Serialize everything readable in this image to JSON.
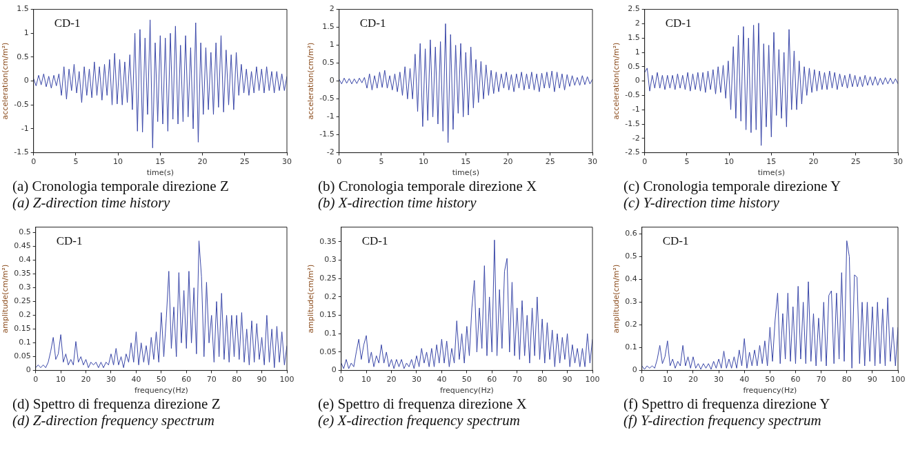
{
  "chart_data": [
    {
      "type": "line",
      "title": "(a) Cronologia temporale direzione Z",
      "subtitle": "(a) Z-direction time history",
      "xlabel": "time(s)",
      "ylabel": "acceleration(cm/m²)",
      "annotations": [
        "CD-1"
      ],
      "color": "#3a47a8",
      "x": [
        0,
        0.3,
        0.6,
        0.9,
        1.2,
        1.5,
        1.8,
        2.1,
        2.4,
        2.7,
        3,
        3.3,
        3.6,
        3.9,
        4.2,
        4.5,
        4.8,
        5.1,
        5.4,
        5.7,
        6,
        6.3,
        6.6,
        6.9,
        7.2,
        7.5,
        7.8,
        8.1,
        8.4,
        8.7,
        9,
        9.3,
        9.6,
        9.9,
        10.2,
        10.5,
        10.8,
        11.1,
        11.4,
        11.7,
        12,
        12.3,
        12.6,
        12.9,
        13.2,
        13.5,
        13.8,
        14.1,
        14.4,
        14.7,
        15,
        15.3,
        15.6,
        15.9,
        16.2,
        16.5,
        16.8,
        17.1,
        17.4,
        17.7,
        18,
        18.3,
        18.6,
        18.9,
        19.2,
        19.5,
        19.8,
        20.1,
        20.4,
        20.7,
        21,
        21.3,
        21.6,
        21.9,
        22.2,
        22.5,
        22.8,
        23.1,
        23.4,
        23.7,
        24,
        24.3,
        24.6,
        24.9,
        25.2,
        25.5,
        25.8,
        26.1,
        26.4,
        26.7,
        27,
        27.3,
        27.6,
        27.9,
        28.2,
        28.5,
        28.8,
        29.1,
        29.4,
        29.7,
        30
      ],
      "values": [
        0.05,
        -0.1,
        0.12,
        -0.08,
        0.15,
        -0.12,
        0.1,
        -0.15,
        0.12,
        -0.1,
        0.15,
        -0.3,
        0.3,
        -0.38,
        0.25,
        -0.2,
        0.35,
        -0.25,
        0.2,
        -0.45,
        0.3,
        -0.3,
        0.25,
        -0.35,
        0.4,
        -0.3,
        0.3,
        -0.4,
        0.35,
        -0.3,
        0.45,
        -0.5,
        0.58,
        -0.48,
        0.45,
        -0.5,
        0.4,
        -0.45,
        0.55,
        -0.6,
        1.0,
        -1.05,
        1.08,
        -1.07,
        0.9,
        -0.7,
        1.28,
        -1.4,
        0.8,
        -0.85,
        0.95,
        -0.9,
        0.9,
        -1.05,
        1.0,
        -0.8,
        1.15,
        -0.9,
        0.75,
        -0.85,
        0.95,
        -0.75,
        0.7,
        -1.0,
        1.22,
        -1.28,
        0.8,
        -0.7,
        0.7,
        -0.6,
        0.6,
        -0.7,
        0.8,
        -0.55,
        0.95,
        -0.65,
        0.65,
        -0.5,
        0.55,
        -0.6,
        0.6,
        -0.3,
        0.35,
        -0.25,
        0.25,
        -0.3,
        0.2,
        -0.25,
        0.3,
        -0.2,
        0.25,
        -0.25,
        0.3,
        -0.2,
        0.2,
        -0.25,
        0.2,
        -0.2,
        0.15,
        -0.2,
        0.1
      ],
      "xlim": [
        0,
        30
      ],
      "xticks": [
        0,
        5,
        10,
        15,
        20,
        25,
        30
      ],
      "ylim": [
        -1.5,
        1.5
      ],
      "yticks": [
        -1.5,
        -1,
        -0.5,
        0,
        0.5,
        1,
        1.5
      ]
    },
    {
      "type": "line",
      "title": "(b) Cronologia temporale direzione X",
      "subtitle": "(b) X-direction time history",
      "xlabel": "time(s)",
      "ylabel": "acceleration(cm/m²)",
      "annotations": [
        "CD-1"
      ],
      "color": "#3a47a8",
      "x": [
        0,
        0.3,
        0.6,
        0.9,
        1.2,
        1.5,
        1.8,
        2.1,
        2.4,
        2.7,
        3,
        3.3,
        3.6,
        3.9,
        4.2,
        4.5,
        4.8,
        5.1,
        5.4,
        5.7,
        6,
        6.3,
        6.6,
        6.9,
        7.2,
        7.5,
        7.8,
        8.1,
        8.4,
        8.7,
        9,
        9.3,
        9.6,
        9.9,
        10.2,
        10.5,
        10.8,
        11.1,
        11.4,
        11.7,
        12,
        12.3,
        12.6,
        12.9,
        13.2,
        13.5,
        13.8,
        14.1,
        14.4,
        14.7,
        15,
        15.3,
        15.6,
        15.9,
        16.2,
        16.5,
        16.8,
        17.1,
        17.4,
        17.7,
        18,
        18.3,
        18.6,
        18.9,
        19.2,
        19.5,
        19.8,
        20.1,
        20.4,
        20.7,
        21,
        21.3,
        21.6,
        21.9,
        22.2,
        22.5,
        22.8,
        23.1,
        23.4,
        23.7,
        24,
        24.3,
        24.6,
        24.9,
        25.2,
        25.5,
        25.8,
        26.1,
        26.4,
        26.7,
        27,
        27.3,
        27.6,
        27.9,
        28.2,
        28.5,
        28.8,
        29.1,
        29.4,
        29.7,
        30
      ],
      "values": [
        0.05,
        -0.08,
        0.08,
        -0.06,
        0.07,
        -0.08,
        0.06,
        -0.07,
        0.08,
        -0.05,
        0.1,
        -0.2,
        0.2,
        -0.25,
        0.15,
        -0.2,
        0.25,
        -0.18,
        0.3,
        -0.2,
        0.15,
        -0.25,
        0.2,
        -0.3,
        0.25,
        -0.4,
        0.4,
        -0.5,
        0.35,
        -0.5,
        0.75,
        -0.85,
        1.05,
        -1.27,
        0.9,
        -1.1,
        1.15,
        -1.0,
        0.95,
        -1.2,
        1.1,
        -1.4,
        1.6,
        -1.72,
        1.3,
        -1.35,
        1.0,
        -0.9,
        1.05,
        -1.0,
        0.8,
        -0.95,
        0.95,
        -0.75,
        0.6,
        -0.6,
        0.55,
        -0.5,
        0.45,
        -0.4,
        0.3,
        -0.35,
        0.25,
        -0.3,
        0.2,
        -0.2,
        0.25,
        -0.25,
        0.18,
        -0.3,
        0.2,
        -0.2,
        0.25,
        -0.25,
        0.2,
        -0.22,
        0.25,
        -0.25,
        0.2,
        -0.3,
        0.22,
        -0.2,
        0.25,
        -0.2,
        0.28,
        -0.3,
        0.25,
        -0.2,
        0.2,
        -0.25,
        0.18,
        -0.15,
        0.15,
        -0.12,
        0.1,
        -0.12,
        0.15,
        -0.1,
        0.12,
        -0.08,
        0.05
      ],
      "xlim": [
        0,
        30
      ],
      "xticks": [
        0,
        5,
        10,
        15,
        20,
        25,
        30
      ],
      "ylim": [
        -2,
        2
      ],
      "yticks": [
        -2,
        -1.5,
        -1,
        -0.5,
        0,
        0.5,
        1,
        1.5,
        2
      ]
    },
    {
      "type": "line",
      "title": "(c) Cronologia temporale direzione Y",
      "subtitle": "(c) Y-direction time history",
      "xlabel": "time(s)",
      "ylabel": "acceleration(cm/m²)",
      "annotations": [
        "CD-1"
      ],
      "color": "#3a47a8",
      "x": [
        0,
        0.3,
        0.6,
        0.9,
        1.2,
        1.5,
        1.8,
        2.1,
        2.4,
        2.7,
        3,
        3.3,
        3.6,
        3.9,
        4.2,
        4.5,
        4.8,
        5.1,
        5.4,
        5.7,
        6,
        6.3,
        6.6,
        6.9,
        7.2,
        7.5,
        7.8,
        8.1,
        8.4,
        8.7,
        9,
        9.3,
        9.6,
        9.9,
        10.2,
        10.5,
        10.8,
        11.1,
        11.4,
        11.7,
        12,
        12.3,
        12.6,
        12.9,
        13.2,
        13.5,
        13.8,
        14.1,
        14.4,
        14.7,
        15,
        15.3,
        15.6,
        15.9,
        16.2,
        16.5,
        16.8,
        17.1,
        17.4,
        17.7,
        18,
        18.3,
        18.6,
        18.9,
        19.2,
        19.5,
        19.8,
        20.1,
        20.4,
        20.7,
        21,
        21.3,
        21.6,
        21.9,
        22.2,
        22.5,
        22.8,
        23.1,
        23.4,
        23.7,
        24,
        24.3,
        24.6,
        24.9,
        25.2,
        25.5,
        25.8,
        26.1,
        26.4,
        26.7,
        27,
        27.3,
        27.6,
        27.9,
        28.2,
        28.5,
        28.8,
        29.1,
        29.4,
        29.7,
        30
      ],
      "values": [
        0.3,
        0.45,
        -0.35,
        0.2,
        -0.25,
        0.3,
        -0.25,
        0.2,
        -0.3,
        0.2,
        -0.25,
        0.2,
        -0.3,
        0.25,
        -0.25,
        0.2,
        -0.3,
        0.3,
        -0.35,
        0.25,
        -0.3,
        0.3,
        -0.35,
        0.3,
        -0.4,
        0.35,
        -0.3,
        0.4,
        -0.45,
        0.5,
        -0.4,
        0.55,
        -0.6,
        0.7,
        -1.0,
        1.2,
        -1.3,
        1.6,
        -1.4,
        1.9,
        -1.7,
        1.5,
        -1.8,
        1.95,
        -1.7,
        2.02,
        -2.25,
        1.3,
        -1.6,
        1.25,
        -1.95,
        1.7,
        -1.2,
        1.1,
        -1.3,
        1.0,
        -1.6,
        1.8,
        -1.0,
        1.05,
        -1.0,
        0.7,
        -0.8,
        0.5,
        -0.5,
        0.45,
        -0.4,
        0.4,
        -0.35,
        0.35,
        -0.3,
        0.3,
        -0.3,
        0.35,
        -0.25,
        0.3,
        -0.3,
        0.25,
        -0.2,
        0.2,
        -0.25,
        0.25,
        -0.2,
        0.2,
        -0.2,
        0.15,
        -0.2,
        0.2,
        -0.15,
        0.15,
        -0.15,
        0.15,
        -0.15,
        0.1,
        -0.12,
        0.12,
        -0.1,
        0.1,
        -0.1,
        0.08,
        -0.1
      ],
      "xlim": [
        0,
        30
      ],
      "xticks": [
        0,
        5,
        10,
        15,
        20,
        25,
        30
      ],
      "ylim": [
        -2.5,
        2.5
      ],
      "yticks": [
        -2.5,
        -2,
        -1.5,
        -1,
        -0.5,
        0,
        0.5,
        1,
        1.5,
        2,
        2.5
      ]
    },
    {
      "type": "line",
      "title": "(d) Spettro di frequenza direzione Z",
      "subtitle": "(d) Z-direction frequency spectrum",
      "xlabel": "frequency(Hz)",
      "ylabel": "amplitude(cm/m²)",
      "annotations": [
        "CD-1"
      ],
      "color": "#3a47a8",
      "x": [
        0,
        1,
        2,
        3,
        4,
        5,
        6,
        7,
        8,
        9,
        10,
        11,
        12,
        13,
        14,
        15,
        16,
        17,
        18,
        19,
        20,
        21,
        22,
        23,
        24,
        25,
        26,
        27,
        28,
        29,
        30,
        31,
        32,
        33,
        34,
        35,
        36,
        37,
        38,
        39,
        40,
        41,
        42,
        43,
        44,
        45,
        46,
        47,
        48,
        49,
        50,
        51,
        52,
        53,
        54,
        55,
        56,
        57,
        58,
        59,
        60,
        61,
        62,
        63,
        64,
        65,
        66,
        67,
        68,
        69,
        70,
        71,
        72,
        73,
        74,
        75,
        76,
        77,
        78,
        79,
        80,
        81,
        82,
        83,
        84,
        85,
        86,
        87,
        88,
        89,
        90,
        91,
        92,
        93,
        94,
        95,
        96,
        97,
        98,
        99,
        100
      ],
      "values": [
        0.01,
        0.02,
        0.01,
        0.02,
        0.01,
        0.03,
        0.07,
        0.12,
        0.04,
        0.06,
        0.13,
        0.03,
        0.06,
        0.02,
        0.04,
        0.02,
        0.105,
        0.03,
        0.05,
        0.02,
        0.04,
        0.01,
        0.03,
        0.02,
        0.03,
        0.01,
        0.03,
        0.01,
        0.03,
        0.02,
        0.06,
        0.02,
        0.08,
        0.02,
        0.05,
        0.01,
        0.06,
        0.03,
        0.1,
        0.03,
        0.14,
        0.02,
        0.1,
        0.03,
        0.09,
        0.02,
        0.12,
        0.04,
        0.14,
        0.03,
        0.21,
        0.05,
        0.19,
        0.36,
        0.08,
        0.23,
        0.05,
        0.355,
        0.1,
        0.29,
        0.08,
        0.36,
        0.1,
        0.3,
        0.06,
        0.47,
        0.34,
        0.05,
        0.32,
        0.1,
        0.2,
        0.03,
        0.25,
        0.05,
        0.28,
        0.04,
        0.2,
        0.03,
        0.2,
        0.05,
        0.2,
        0.04,
        0.21,
        0.03,
        0.15,
        0.02,
        0.18,
        0.03,
        0.17,
        0.04,
        0.12,
        0.02,
        0.2,
        0.03,
        0.15,
        0.01,
        0.16,
        0.03,
        0.14,
        0.02,
        0.09
      ],
      "xlim": [
        0,
        100
      ],
      "xticks": [
        0,
        10,
        20,
        30,
        40,
        50,
        60,
        70,
        80,
        90,
        100
      ],
      "ylim": [
        0,
        0.52
      ],
      "yticks": [
        0,
        0.05,
        0.1,
        0.15,
        0.2,
        0.25,
        0.3,
        0.35,
        0.4,
        0.45,
        0.5
      ]
    },
    {
      "type": "line",
      "title": "(e) Spettro di frequenza direzione X",
      "subtitle": "(e) X-direction frequency spectrum",
      "xlabel": "frequency(Hz)",
      "ylabel": "amplitude(cm/m²)",
      "annotations": [
        "CD-1"
      ],
      "color": "#3a47a8",
      "x": [
        0,
        1,
        2,
        3,
        4,
        5,
        6,
        7,
        8,
        9,
        10,
        11,
        12,
        13,
        14,
        15,
        16,
        17,
        18,
        19,
        20,
        21,
        22,
        23,
        24,
        25,
        26,
        27,
        28,
        29,
        30,
        31,
        32,
        33,
        34,
        35,
        36,
        37,
        38,
        39,
        40,
        41,
        42,
        43,
        44,
        45,
        46,
        47,
        48,
        49,
        50,
        51,
        52,
        53,
        54,
        55,
        56,
        57,
        58,
        59,
        60,
        61,
        62,
        63,
        64,
        65,
        66,
        67,
        68,
        69,
        70,
        71,
        72,
        73,
        74,
        75,
        76,
        77,
        78,
        79,
        80,
        81,
        82,
        83,
        84,
        85,
        86,
        87,
        88,
        89,
        90,
        91,
        92,
        93,
        94,
        95,
        96,
        97,
        98,
        99,
        100
      ],
      "values": [
        0.02,
        0.005,
        0.03,
        0.005,
        0.02,
        0.01,
        0.05,
        0.085,
        0.03,
        0.07,
        0.095,
        0.02,
        0.05,
        0.01,
        0.04,
        0.02,
        0.07,
        0.02,
        0.05,
        0.01,
        0.03,
        0.005,
        0.03,
        0.01,
        0.03,
        0.005,
        0.02,
        0.01,
        0.03,
        0.005,
        0.04,
        0.01,
        0.06,
        0.02,
        0.05,
        0.01,
        0.06,
        0.01,
        0.07,
        0.02,
        0.085,
        0.02,
        0.08,
        0.01,
        0.06,
        0.02,
        0.135,
        0.03,
        0.1,
        0.02,
        0.12,
        0.04,
        0.17,
        0.245,
        0.05,
        0.17,
        0.06,
        0.285,
        0.04,
        0.2,
        0.05,
        0.355,
        0.04,
        0.22,
        0.06,
        0.27,
        0.305,
        0.05,
        0.24,
        0.04,
        0.17,
        0.03,
        0.19,
        0.04,
        0.15,
        0.02,
        0.17,
        0.04,
        0.2,
        0.03,
        0.14,
        0.02,
        0.13,
        0.03,
        0.11,
        0.01,
        0.1,
        0.02,
        0.09,
        0.03,
        0.1,
        0.01,
        0.07,
        0.02,
        0.06,
        0.01,
        0.06,
        0.01,
        0.1,
        0.02,
        0.085
      ],
      "xlim": [
        0,
        100
      ],
      "xticks": [
        0,
        10,
        20,
        30,
        40,
        50,
        60,
        70,
        80,
        90,
        100
      ],
      "ylim": [
        0,
        0.39
      ],
      "yticks": [
        0,
        0.05,
        0.1,
        0.15,
        0.2,
        0.25,
        0.3,
        0.35
      ]
    },
    {
      "type": "line",
      "title": "(f) Spettro di frequenza direzione Y",
      "subtitle": "(f) Y-direction frequency spectrum",
      "xlabel": "frequency(Hz)",
      "ylabel": "amplitude(cm/m²)",
      "annotations": [
        "CD-1"
      ],
      "color": "#3a47a8",
      "x": [
        0,
        1,
        2,
        3,
        4,
        5,
        6,
        7,
        8,
        9,
        10,
        11,
        12,
        13,
        14,
        15,
        16,
        17,
        18,
        19,
        20,
        21,
        22,
        23,
        24,
        25,
        26,
        27,
        28,
        29,
        30,
        31,
        32,
        33,
        34,
        35,
        36,
        37,
        38,
        39,
        40,
        41,
        42,
        43,
        44,
        45,
        46,
        47,
        48,
        49,
        50,
        51,
        52,
        53,
        54,
        55,
        56,
        57,
        58,
        59,
        60,
        61,
        62,
        63,
        64,
        65,
        66,
        67,
        68,
        69,
        70,
        71,
        72,
        73,
        74,
        75,
        76,
        77,
        78,
        79,
        80,
        81,
        82,
        83,
        84,
        85,
        86,
        87,
        88,
        89,
        90,
        91,
        92,
        93,
        94,
        95,
        96,
        97,
        98,
        99,
        100
      ],
      "values": [
        0.02,
        0.005,
        0.02,
        0.01,
        0.02,
        0.01,
        0.05,
        0.11,
        0.03,
        0.06,
        0.13,
        0.02,
        0.05,
        0.01,
        0.04,
        0.02,
        0.11,
        0.02,
        0.06,
        0.01,
        0.06,
        0.01,
        0.03,
        0.005,
        0.03,
        0.01,
        0.03,
        0.005,
        0.04,
        0.01,
        0.05,
        0.01,
        0.085,
        0.01,
        0.05,
        0.01,
        0.06,
        0.01,
        0.09,
        0.02,
        0.14,
        0.01,
        0.08,
        0.02,
        0.09,
        0.02,
        0.11,
        0.03,
        0.13,
        0.02,
        0.19,
        0.04,
        0.22,
        0.34,
        0.03,
        0.25,
        0.05,
        0.34,
        0.04,
        0.28,
        0.03,
        0.37,
        0.05,
        0.3,
        0.03,
        0.39,
        0.04,
        0.25,
        0.02,
        0.23,
        0.04,
        0.3,
        0.02,
        0.33,
        0.35,
        0.03,
        0.34,
        0.05,
        0.43,
        0.04,
        0.57,
        0.5,
        0.01,
        0.42,
        0.41,
        0.03,
        0.3,
        0.02,
        0.3,
        0.04,
        0.28,
        0.02,
        0.3,
        0.03,
        0.27,
        0.02,
        0.32,
        0.04,
        0.19,
        0.02,
        0.19
      ],
      "xlim": [
        0,
        100
      ],
      "xticks": [
        0,
        10,
        20,
        30,
        40,
        50,
        60,
        70,
        80,
        90,
        100
      ],
      "ylim": [
        0,
        0.63
      ],
      "yticks": [
        0,
        0.1,
        0.2,
        0.3,
        0.4,
        0.5,
        0.6
      ]
    }
  ]
}
